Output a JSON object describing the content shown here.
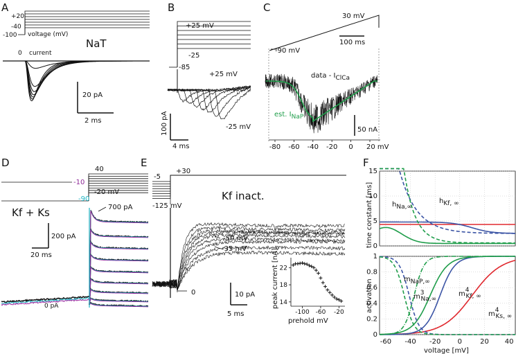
{
  "colors": {
    "ink": "#111111",
    "green": "#1f9d4a",
    "blue": "#3b54a5",
    "red": "#e0282e",
    "cyan": "#1fb5c3",
    "magenta": "#9c2aa0",
    "purple": "#8e2a97"
  },
  "panels": {
    "A": {
      "letter": "A",
      "v_hold": "-100",
      "v_top": "+20",
      "v_bottom": "-40",
      "voltage_label": "voltage (mV)",
      "title": "NaT",
      "zero": "0",
      "current_label": "current",
      "scale_y": "20 pA",
      "scale_x": "2 ms",
      "steps_mV": [
        -40,
        -30,
        -20,
        -10,
        0,
        10,
        20
      ],
      "peak_pA": [
        8,
        28,
        34,
        38,
        41,
        44,
        47
      ]
    },
    "B": {
      "letter": "B",
      "v_top": "+25 mV",
      "v_bottom": "-25",
      "v_hold": "-85",
      "trace_top": "+25 mV",
      "trace_bottom": "-25 mV",
      "scale_y": "100 pA",
      "scale_x": "4 ms"
    },
    "C": {
      "letter": "C",
      "ramp_top": "30 mV",
      "ramp_bottom": "-90 mV",
      "time_scale": "100 ms",
      "trace_label": "data - I",
      "trace_label_sub": "ClCa",
      "est_label": "est. I",
      "est_label_sub": "NaP",
      "zero": "0",
      "scale_y": "50 nA",
      "x_ticks": [
        "-80",
        "-60",
        "-40",
        "-20",
        "0",
        "20 mV"
      ],
      "x_values": [
        -80,
        -60,
        -40,
        -20,
        0,
        20
      ]
    },
    "D": {
      "letter": "D",
      "v_top": "40",
      "v_mid": "-10",
      "v_low": "-20 mV",
      "v_hold": "-90",
      "title": "Kf + Ks",
      "peak": "700 pA",
      "scale_y": "200 pA",
      "scale_x": "20 ms",
      "zero": "0 pA"
    },
    "E": {
      "letter": "E",
      "v_pre": "-5",
      "v_test": "+30",
      "v_hold": "-125 mV",
      "title": "Kf inact.",
      "trace_a": "-50 mV",
      "trace_b": "-35 mV",
      "zero": "0",
      "scale_y": "10 pA",
      "scale_x": "5 ms",
      "inset": {
        "ylabel": "peak current [nA]",
        "xlabel": "prehold mV",
        "yticks": [
          "22",
          "18",
          "14"
        ],
        "xticks": [
          "-100",
          "-60",
          "-20"
        ],
        "points": [
          [
            -120,
            22.6
          ],
          [
            -115,
            22.9
          ],
          [
            -110,
            22.9
          ],
          [
            -105,
            23.0
          ],
          [
            -100,
            23.1
          ],
          [
            -95,
            22.9
          ],
          [
            -90,
            22.8
          ],
          [
            -85,
            22.5
          ],
          [
            -80,
            22.3
          ],
          [
            -75,
            22.0
          ],
          [
            -70,
            21.4
          ],
          [
            -65,
            20.7
          ],
          [
            -60,
            19.6
          ],
          [
            -55,
            18.5
          ],
          [
            -50,
            17.6
          ],
          [
            -45,
            16.8
          ],
          [
            -40,
            16.2
          ],
          [
            -35,
            15.6
          ],
          [
            -30,
            15.1
          ],
          [
            -25,
            14.7
          ],
          [
            -20,
            14.5
          ],
          [
            -15,
            14.2
          ]
        ]
      }
    },
    "F": {
      "letter": "F",
      "top_ylabel": "time constant [ms]",
      "bottom_ylabel": "activation",
      "xlabel": "voltage [mV]",
      "top_yticks": [
        "15",
        "10",
        "5",
        "0"
      ],
      "bottom_yticks": [
        "1",
        "0.8",
        "0.6",
        "0.4",
        "0.2",
        "0"
      ],
      "xticks": [
        "-60",
        "-40",
        "-20",
        "0",
        "20",
        "40"
      ],
      "top_labels": [
        {
          "main": "h",
          "sub": "Na,∞"
        },
        {
          "main": "h",
          "sub": "Kf, ∞"
        }
      ],
      "bottom_labels": [
        {
          "main": "m",
          "sub": "NaP,∞",
          "sup": ""
        },
        {
          "main": "m",
          "sub": "Na,∞",
          "sup": "3"
        },
        {
          "main": "m",
          "sub": "Kf, ∞",
          "sup": "4"
        },
        {
          "main": "m",
          "sub": "Ks, ∞",
          "sup": "4"
        }
      ]
    }
  }
}
